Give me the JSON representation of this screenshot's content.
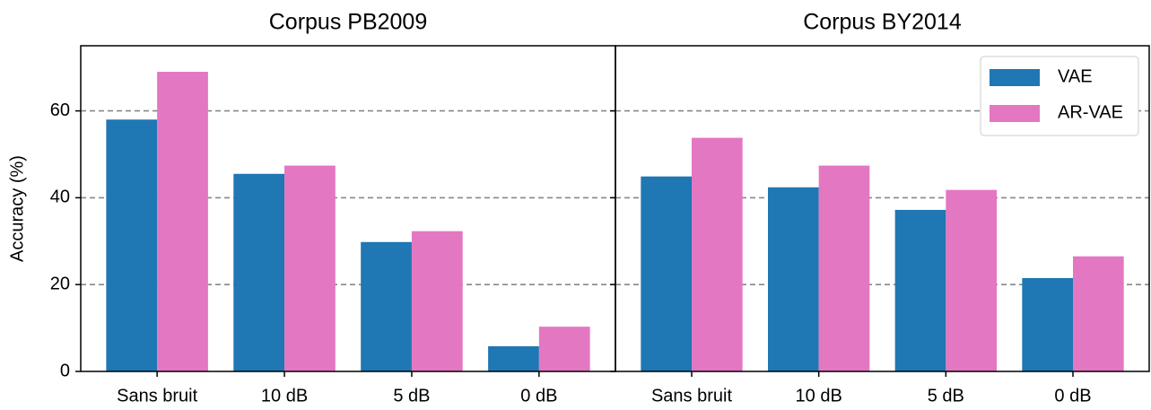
{
  "chart_data": [
    {
      "type": "bar",
      "title": "Corpus PB2009",
      "ylabel": "Accuracy (%)",
      "categories": [
        "Sans bruit",
        "10 dB",
        "5 dB",
        "0 dB"
      ],
      "series": [
        {
          "name": "VAE",
          "color": "#1f77b4",
          "values": [
            58,
            45.5,
            29.8,
            5.8
          ]
        },
        {
          "name": "AR-VAE",
          "color": "#e377c2",
          "values": [
            69,
            47.4,
            32.3,
            10.3
          ]
        }
      ],
      "ylim": [
        0,
        75
      ],
      "yticks": [
        0,
        20,
        40,
        60
      ],
      "grid": true
    },
    {
      "type": "bar",
      "title": "Corpus BY2014",
      "categories": [
        "Sans bruit",
        "10 dB",
        "5 dB",
        "0 dB"
      ],
      "series": [
        {
          "name": "VAE",
          "color": "#1f77b4",
          "values": [
            44.9,
            42.4,
            37.2,
            21.5
          ]
        },
        {
          "name": "AR-VAE",
          "color": "#e377c2",
          "values": [
            53.8,
            47.4,
            41.8,
            26.5
          ]
        }
      ],
      "ylim": [
        0,
        75
      ],
      "yticks": [
        0,
        20,
        40,
        60
      ],
      "grid": true,
      "legend": "upper right"
    }
  ]
}
